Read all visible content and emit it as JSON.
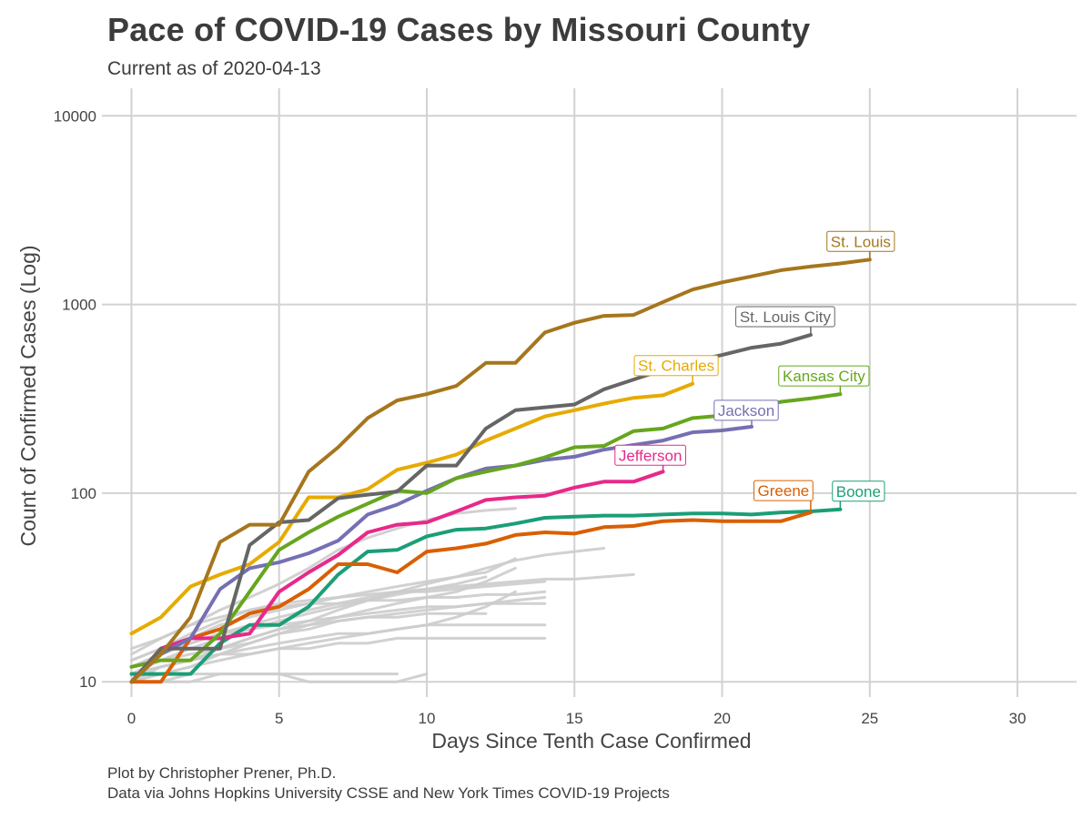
{
  "header": {
    "title": "Pace of COVID-19 Cases by Missouri County",
    "subtitle": "Current as of 2020-04-13"
  },
  "caption": {
    "line1": "Plot by Christopher Prener, Ph.D.",
    "line2": "Data via Johns Hopkins University CSSE and New York Times COVID-19 Projects"
  },
  "chart_data": {
    "type": "line",
    "title": "Pace of COVID-19 Cases by Missouri County",
    "subtitle": "Current as of 2020-04-13",
    "xlabel": "Days Since Tenth Case Confirmed",
    "ylabel": "Count of Confirmed Cases (Log)",
    "xlim": [
      -1,
      32
    ],
    "ylim": [
      8.3,
      14000
    ],
    "y_scale": "log10",
    "x_ticks": [
      0,
      5,
      10,
      15,
      20,
      25,
      30
    ],
    "y_ticks": [
      10,
      100,
      1000,
      10000
    ],
    "grid": true,
    "legend": "none (direct labels)",
    "background_series": [
      {
        "name": "other-1",
        "x": [
          0,
          1,
          2,
          3,
          4,
          5,
          6,
          7,
          8,
          9,
          10,
          11,
          12,
          13
        ],
        "y": [
          15,
          17,
          20,
          24,
          28,
          33,
          40,
          50,
          58,
          65,
          72,
          78,
          81,
          83
        ]
      },
      {
        "name": "other-2",
        "x": [
          0,
          1,
          2,
          3,
          4,
          5,
          6,
          7,
          8,
          9,
          10,
          11,
          12,
          13,
          14,
          15,
          16
        ],
        "y": [
          11,
          12,
          13,
          15,
          17,
          19,
          21,
          24,
          27,
          30,
          33,
          36,
          40,
          44,
          47,
          49,
          51
        ]
      },
      {
        "name": "other-3",
        "x": [
          0,
          1,
          2,
          3,
          4,
          5,
          6,
          7,
          8,
          9,
          10,
          11,
          12,
          13,
          14,
          15,
          16,
          17
        ],
        "y": [
          12,
          14,
          16,
          18,
          20,
          22,
          24,
          26,
          28,
          30,
          31,
          32,
          33,
          34,
          35,
          35,
          36,
          37
        ]
      },
      {
        "name": "other-4",
        "x": [
          0,
          1,
          2,
          3,
          4,
          5,
          6,
          7,
          8,
          9,
          10,
          11,
          12,
          13,
          14
        ],
        "y": [
          13,
          15,
          18,
          21,
          24,
          26,
          27,
          28,
          29,
          30,
          30,
          31,
          32,
          33,
          34
        ]
      },
      {
        "name": "other-5",
        "x": [
          0,
          1,
          2,
          3,
          4,
          5,
          6,
          7,
          8,
          9,
          10,
          11,
          12,
          13,
          14
        ],
        "y": [
          14,
          17,
          20,
          22,
          24,
          25,
          26,
          26,
          27,
          27,
          28,
          28,
          29,
          29,
          30
        ]
      },
      {
        "name": "other-6",
        "x": [
          0,
          1,
          2,
          3,
          4,
          5,
          6,
          7,
          8,
          9,
          10,
          11,
          12,
          13,
          14
        ],
        "y": [
          11,
          12,
          13,
          15,
          16,
          18,
          19,
          21,
          22,
          23,
          24,
          25,
          26,
          27,
          28
        ]
      },
      {
        "name": "other-7",
        "x": [
          0,
          1,
          2,
          3,
          4,
          5,
          6,
          7,
          8,
          9,
          10,
          11,
          12,
          13,
          14
        ],
        "y": [
          10,
          11,
          12,
          14,
          16,
          18,
          20,
          22,
          23,
          24,
          25,
          25,
          26,
          26,
          26
        ]
      },
      {
        "name": "other-8",
        "x": [
          0,
          1,
          2,
          3,
          4,
          5,
          6,
          7,
          8,
          9,
          10,
          11,
          12
        ],
        "y": [
          12,
          13,
          14,
          15,
          17,
          19,
          20,
          21,
          22,
          22,
          23,
          23,
          23
        ]
      },
      {
        "name": "other-9",
        "x": [
          0,
          1,
          2,
          3,
          4,
          5,
          6,
          7,
          8,
          9,
          10,
          11,
          12,
          13,
          14
        ],
        "y": [
          10,
          11,
          12,
          13,
          14,
          15,
          16,
          17,
          18,
          19,
          20,
          20,
          20,
          20,
          20
        ]
      },
      {
        "name": "other-10",
        "x": [
          0,
          1,
          2,
          3,
          4,
          5,
          6,
          7,
          8,
          9,
          10,
          11,
          12,
          13,
          14
        ],
        "y": [
          11,
          12,
          13,
          14,
          14,
          15,
          15,
          16,
          16,
          17,
          17,
          17,
          17,
          17,
          17
        ]
      },
      {
        "name": "other-11",
        "x": [
          0,
          1,
          2,
          3,
          4,
          5,
          6,
          7,
          8,
          9
        ],
        "y": [
          10,
          10,
          11,
          11,
          11,
          11,
          11,
          11,
          11,
          11
        ]
      },
      {
        "name": "other-12",
        "x": [
          0,
          1,
          2,
          3,
          4,
          5,
          6,
          7,
          8,
          9,
          10
        ],
        "y": [
          10,
          10,
          10,
          11,
          11,
          11,
          10,
          10,
          10,
          10,
          11
        ]
      },
      {
        "name": "other-13",
        "x": [
          0,
          1,
          2,
          3,
          4,
          5,
          6,
          7,
          8,
          9,
          10,
          11,
          12,
          13
        ],
        "y": [
          10,
          12,
          13,
          14,
          15,
          16,
          17,
          18,
          18,
          19,
          20,
          22,
          25,
          30
        ]
      },
      {
        "name": "other-14",
        "x": [
          0,
          1,
          2,
          3,
          4,
          5,
          6,
          7,
          8,
          9,
          10,
          11,
          12,
          13
        ],
        "y": [
          12,
          14,
          16,
          18,
          19,
          20,
          21,
          22,
          24,
          26,
          28,
          30,
          34,
          40
        ]
      },
      {
        "name": "other-15",
        "x": [
          0,
          1,
          2,
          3,
          4,
          5,
          6,
          7,
          8,
          9,
          10,
          11,
          12,
          13
        ],
        "y": [
          13,
          15,
          17,
          20,
          22,
          24,
          26,
          28,
          30,
          32,
          34,
          36,
          38,
          45
        ]
      },
      {
        "name": "other-16",
        "x": [
          0,
          1,
          2,
          3,
          4,
          5,
          6,
          7,
          8,
          9,
          10,
          11,
          12
        ],
        "y": [
          11,
          13,
          15,
          17,
          19,
          21,
          23,
          25,
          27,
          29,
          31,
          33,
          36
        ]
      }
    ],
    "series": [
      {
        "name": "St. Louis",
        "color": "#A6761D",
        "x": [
          0,
          1,
          2,
          3,
          4,
          5,
          6,
          7,
          8,
          9,
          10,
          11,
          12,
          13,
          14,
          15,
          16,
          17,
          18,
          19,
          20,
          21,
          22,
          23,
          24,
          25
        ],
        "y": [
          10,
          14,
          22,
          55,
          68,
          68,
          130,
          175,
          250,
          310,
          335,
          370,
          490,
          490,
          710,
          800,
          870,
          880,
          1030,
          1200,
          1310,
          1410,
          1520,
          1590,
          1650,
          1730
        ]
      },
      {
        "name": "St. Louis City",
        "color": "#666666",
        "x": [
          0,
          1,
          2,
          3,
          4,
          5,
          6,
          7,
          8,
          9,
          10,
          11,
          12,
          13,
          14,
          15,
          16,
          17,
          18,
          19,
          20,
          21,
          22,
          23
        ],
        "y": [
          10,
          15,
          15,
          15,
          53,
          70,
          72,
          94,
          98,
          102,
          140,
          140,
          220,
          275,
          285,
          295,
          355,
          400,
          450,
          500,
          540,
          590,
          620,
          690
        ]
      },
      {
        "name": "St. Charles",
        "color": "#E6AB02",
        "x": [
          0,
          1,
          2,
          3,
          4,
          5,
          6,
          7,
          8,
          9,
          10,
          11,
          12,
          13,
          14,
          15,
          16,
          17,
          18,
          19
        ],
        "y": [
          18,
          22,
          32,
          37,
          42,
          55,
          95,
          95,
          105,
          133,
          145,
          160,
          190,
          220,
          255,
          275,
          298,
          320,
          330,
          380
        ]
      },
      {
        "name": "Kansas City",
        "color": "#66A61E",
        "x": [
          0,
          1,
          2,
          3,
          4,
          5,
          6,
          7,
          8,
          9,
          10,
          11,
          12,
          13,
          14,
          15,
          16,
          17,
          18,
          19,
          20,
          21,
          22,
          23,
          24
        ],
        "y": [
          12,
          13,
          13,
          18,
          30,
          50,
          62,
          75,
          88,
          103,
          100,
          120,
          130,
          140,
          155,
          175,
          178,
          213,
          220,
          250,
          258,
          282,
          305,
          318,
          335
        ]
      },
      {
        "name": "Jackson",
        "color": "#7570B3",
        "x": [
          0,
          1,
          2,
          3,
          4,
          5,
          6,
          7,
          8,
          9,
          10,
          11,
          12,
          13,
          14,
          15,
          16,
          17,
          18,
          19,
          20,
          21
        ],
        "y": [
          10,
          14,
          17,
          31,
          40,
          43,
          48,
          56,
          77,
          87,
          103,
          120,
          135,
          140,
          150,
          156,
          170,
          180,
          190,
          210,
          215,
          225
        ]
      },
      {
        "name": "Jefferson",
        "color": "#E7298A",
        "x": [
          0,
          1,
          2,
          3,
          4,
          5,
          6,
          7,
          8,
          9,
          10,
          11,
          12,
          13,
          14,
          15,
          16,
          17,
          18
        ],
        "y": [
          10,
          15,
          17,
          17,
          18,
          30,
          38,
          47,
          62,
          68,
          70,
          80,
          92,
          95,
          97,
          107,
          115,
          115,
          130
        ]
      },
      {
        "name": "Greene",
        "color": "#D95F02",
        "x": [
          0,
          1,
          2,
          3,
          4,
          5,
          6,
          7,
          8,
          9,
          10,
          11,
          12,
          13,
          14,
          15,
          16,
          17,
          18,
          19,
          20,
          21,
          22,
          23
        ],
        "y": [
          10,
          10,
          17,
          19,
          23,
          25,
          31,
          42,
          42,
          38,
          49,
          51,
          54,
          60,
          62,
          61,
          66,
          67,
          71,
          72,
          71,
          71,
          71,
          79
        ]
      },
      {
        "name": "Boone",
        "color": "#1B9E77",
        "x": [
          0,
          1,
          2,
          3,
          4,
          5,
          6,
          7,
          8,
          9,
          10,
          11,
          12,
          13,
          14,
          15,
          16,
          17,
          18,
          19,
          20,
          21,
          22,
          23,
          24
        ],
        "y": [
          11,
          11,
          11,
          16,
          20,
          20,
          25,
          37,
          49,
          50,
          59,
          64,
          65,
          69,
          74,
          75,
          76,
          76,
          77,
          78,
          78,
          77,
          79,
          80,
          82
        ]
      }
    ],
    "labels": [
      {
        "text": "St. Louis",
        "series": "St. Louis",
        "anchor_x": 25,
        "anchor_y": 1730
      },
      {
        "text": "St. Louis City",
        "series": "St. Louis City",
        "anchor_x": 23,
        "anchor_y": 690
      },
      {
        "text": "St. Charles",
        "series": "St. Charles",
        "anchor_x": 19,
        "anchor_y": 380
      },
      {
        "text": "Kansas City",
        "series": "Kansas City",
        "anchor_x": 24,
        "anchor_y": 335
      },
      {
        "text": "Jackson",
        "series": "Jackson",
        "anchor_x": 21,
        "anchor_y": 225
      },
      {
        "text": "Jefferson",
        "series": "Jefferson",
        "anchor_x": 18,
        "anchor_y": 130
      },
      {
        "text": "Greene",
        "series": "Greene",
        "anchor_x": 23,
        "anchor_y": 79
      },
      {
        "text": "Boone",
        "series": "Boone",
        "anchor_x": 24,
        "anchor_y": 82
      }
    ]
  }
}
